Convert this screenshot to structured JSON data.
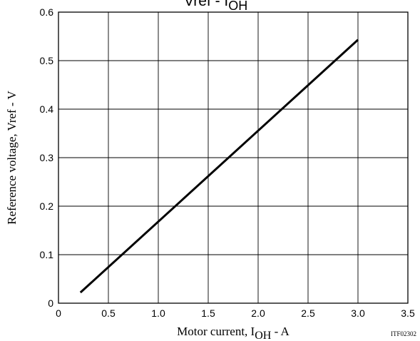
{
  "chart_data": {
    "type": "line",
    "title": {
      "main": "Vref",
      "dash": " - ",
      "sub": "I",
      "sub_suffix": "OH"
    },
    "xlabel": {
      "prefix": "Motor current, I",
      "subscript": "OH",
      "suffix": " - A"
    },
    "ylabel": "Reference voltage, Vref - V",
    "xlim": [
      0,
      3.5
    ],
    "ylim": [
      0,
      0.6
    ],
    "x_ticks": [
      0,
      0.5,
      1.0,
      1.5,
      2.0,
      2.5,
      3.0,
      3.5
    ],
    "x_tick_labels": [
      "0",
      "0.5",
      "1.0",
      "1.5",
      "2.0",
      "2.5",
      "3.0",
      "3.5"
    ],
    "y_ticks": [
      0,
      0.1,
      0.2,
      0.3,
      0.4,
      0.5,
      0.6
    ],
    "y_tick_labels": [
      "0",
      "0.1",
      "0.2",
      "0.3",
      "0.4",
      "0.5",
      "0.6"
    ],
    "grid": true,
    "series": [
      {
        "x": [
          0.22,
          3.0
        ],
        "y": [
          0.022,
          0.543
        ],
        "color": "#000000"
      }
    ]
  },
  "figure_code": "ITF02302"
}
